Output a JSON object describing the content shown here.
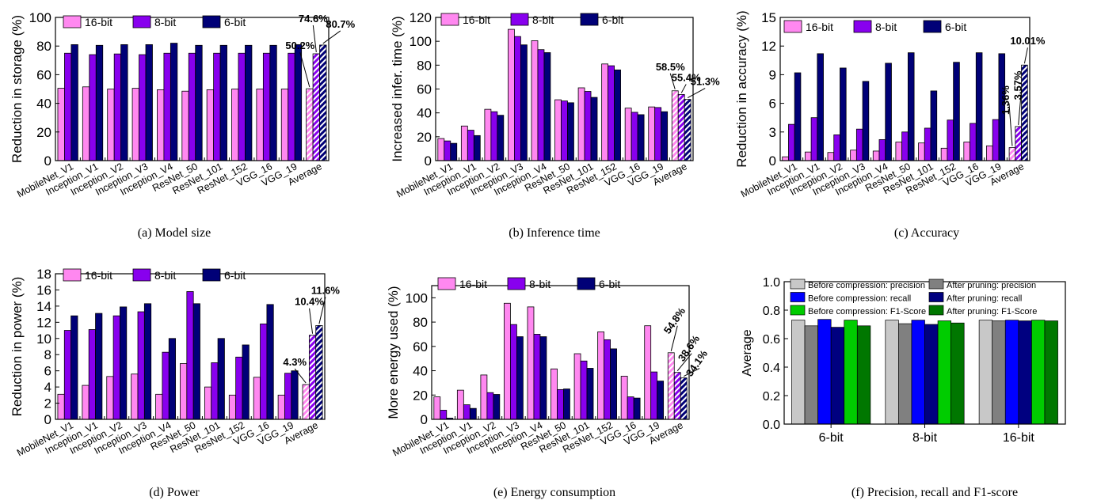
{
  "colors": {
    "b16": "#ff88f0",
    "b8": "#8800ee",
    "b6": "#000077",
    "f_before_precision": "#c8c8c8",
    "f_after_precision": "#808080",
    "f_before_recall": "#0000ff",
    "f_after_recall": "#000080",
    "f_before_f1": "#00cc00",
    "f_after_f1": "#007700"
  },
  "chart_data": [
    {
      "id": "a",
      "type": "bar",
      "caption": "(a) Model size",
      "ylabel": "Reduction in storage (%)",
      "ylim": [
        0,
        100
      ],
      "yticks": [
        0,
        20,
        40,
        60,
        80,
        100
      ],
      "categories": [
        "MobileNet_V1",
        "Inception_V1",
        "Inception_V2",
        "Inception_V3",
        "Inception_V4",
        "ResNet_50",
        "ResNet_101",
        "ResNet_152",
        "VGG_16",
        "VGG_19",
        "Average"
      ],
      "series": [
        {
          "name": "16-bit",
          "values": [
            50.5,
            51.5,
            50,
            50.5,
            49.5,
            48.5,
            49.5,
            50,
            50,
            50,
            50.2
          ]
        },
        {
          "name": "8-bit",
          "values": [
            75,
            74,
            74.5,
            74,
            75,
            75,
            75,
            75,
            75,
            75,
            74.6
          ]
        },
        {
          "name": "6-bit",
          "values": [
            81,
            80.5,
            81,
            81,
            82,
            80.5,
            80.5,
            80.5,
            80.5,
            81,
            80.7
          ]
        }
      ],
      "annotations": [
        "50.2%",
        "74.6%",
        "80.7%"
      ],
      "legend": "top-left"
    },
    {
      "id": "b",
      "type": "bar",
      "caption": "(b) Inference time",
      "ylabel": "Increased infer. time (%)",
      "ylim": [
        0,
        120
      ],
      "yticks": [
        0,
        20,
        40,
        60,
        80,
        100,
        120
      ],
      "categories": [
        "MobileNet_V1",
        "Inception_V1",
        "Inception_V2",
        "Inception_V3",
        "Inception_V4",
        "ResNet_50",
        "ResNet_101",
        "ResNet_152",
        "VGG_16",
        "VGG_19",
        "Average"
      ],
      "series": [
        {
          "name": "16-bit",
          "values": [
            18.5,
            29,
            43,
            110,
            100.5,
            51,
            61,
            81,
            44,
            45,
            58.5
          ]
        },
        {
          "name": "8-bit",
          "values": [
            16.5,
            25.5,
            41,
            104,
            93,
            50,
            58,
            79.5,
            40.5,
            44.5,
            55.4
          ]
        },
        {
          "name": "6-bit",
          "values": [
            14.5,
            21,
            38,
            97,
            90.5,
            48.5,
            53,
            76,
            38.5,
            41,
            51.3
          ]
        }
      ],
      "annotations": [
        "58.5%",
        "55.4%",
        "51.3%"
      ],
      "legend": "top-left"
    },
    {
      "id": "c",
      "type": "bar",
      "caption": "(c) Accuracy",
      "ylabel": "Reduction in accuracy (%)",
      "ylim": [
        0,
        15
      ],
      "yticks": [
        0,
        3,
        6,
        9,
        12,
        15
      ],
      "categories": [
        "MobileNet_V1",
        "Inception_V1",
        "Inception_V2",
        "Inception_V3",
        "Inception_V4",
        "ResNet_50",
        "ResNet_101",
        "ResNet_152",
        "VGG_16",
        "VGG_19",
        "Average"
      ],
      "series": [
        {
          "name": "16-bit",
          "values": [
            0.4,
            0.9,
            0.85,
            1.1,
            1.0,
            1.95,
            1.85,
            1.3,
            1.95,
            1.55,
            1.36
          ]
        },
        {
          "name": "8-bit",
          "values": [
            3.8,
            4.5,
            2.7,
            3.3,
            2.2,
            3.0,
            3.4,
            4.25,
            3.9,
            4.3,
            3.57
          ]
        },
        {
          "name": "6-bit",
          "values": [
            9.2,
            11.2,
            9.7,
            8.3,
            10.2,
            11.3,
            7.3,
            10.3,
            11.3,
            11.2,
            10.01
          ]
        }
      ],
      "annotations": [
        "1.36%",
        "3.57%",
        "10.01%"
      ],
      "legend": "top-left"
    },
    {
      "id": "d",
      "type": "bar",
      "caption": "(d) Power",
      "ylabel": "Reduction in power (%)",
      "ylim": [
        0,
        18
      ],
      "yticks": [
        0,
        2,
        4,
        6,
        8,
        10,
        12,
        14,
        16,
        18
      ],
      "categories": [
        "MobileNet_V1",
        "Inception_V1",
        "Inception_V2",
        "Inception_V3",
        "Inception_V4",
        "ResNet_50",
        "ResNet_101",
        "ResNet_152",
        "VGG_16",
        "VGG_19",
        "Average"
      ],
      "series": [
        {
          "name": "16-bit",
          "values": [
            3.1,
            4.2,
            5.3,
            5.6,
            3.1,
            6.9,
            4.0,
            3.0,
            5.2,
            3.0,
            4.3
          ]
        },
        {
          "name": "8-bit",
          "values": [
            11.0,
            11.1,
            12.8,
            13.3,
            8.3,
            15.8,
            7.0,
            7.7,
            11.8,
            5.7,
            10.4
          ]
        },
        {
          "name": "6-bit",
          "values": [
            12.8,
            13.1,
            13.9,
            14.3,
            10.0,
            14.3,
            10.0,
            9.2,
            14.2,
            6.0,
            11.6
          ]
        }
      ],
      "annotations": [
        "4.3%",
        "10.4%",
        "11.6%"
      ],
      "legend": "top-left"
    },
    {
      "id": "e",
      "type": "bar",
      "caption": "(e) Energy consumption",
      "ylabel": "More energy used (%)",
      "ylim": [
        0,
        110
      ],
      "yticks": [
        0,
        20,
        40,
        60,
        80,
        100
      ],
      "categories": [
        "MobileNet_V1",
        "Inception_V1",
        "Inception_V2",
        "Inception_V3",
        "Inception_V4",
        "ResNet_50",
        "ResNet_101",
        "ResNet_152",
        "VGG_16",
        "VGG_19",
        "Average"
      ],
      "series": [
        {
          "name": "16-bit",
          "values": [
            18.5,
            24,
            36.5,
            95.5,
            92.5,
            41.5,
            54,
            72,
            35.5,
            77,
            54.8
          ]
        },
        {
          "name": "8-bit",
          "values": [
            7.5,
            12,
            22,
            78,
            70,
            24.5,
            48,
            65.5,
            18.5,
            39,
            38.6
          ]
        },
        {
          "name": "6-bit",
          "values": [
            1,
            9,
            20.5,
            68,
            68,
            25,
            42,
            58,
            17.5,
            31.5,
            34.1
          ]
        }
      ],
      "annotations": [
        "54.8%",
        "38.6%",
        "34.1%"
      ],
      "legend": "top-left"
    },
    {
      "id": "f",
      "type": "bar",
      "caption": "(f) Precision, recall and F1-score",
      "ylabel": "Average",
      "ylim": [
        0,
        1.0
      ],
      "yticks": [
        "0.0",
        "0.2",
        "0.4",
        "0.6",
        "0.8",
        "1.0"
      ],
      "categories": [
        "6-bit",
        "8-bit",
        "16-bit"
      ],
      "series": [
        {
          "name": "Before compression: precision",
          "values": [
            0.73,
            0.73,
            0.73
          ]
        },
        {
          "name": "After pruning: precision",
          "values": [
            0.69,
            0.705,
            0.725
          ]
        },
        {
          "name": "Before compression: recall",
          "values": [
            0.735,
            0.73,
            0.73
          ]
        },
        {
          "name": "After pruning: recall",
          "values": [
            0.68,
            0.7,
            0.725
          ]
        },
        {
          "name": "Before compression: F1-Score",
          "values": [
            0.73,
            0.725,
            0.73
          ]
        },
        {
          "name": "After pruning: F1-Score",
          "values": [
            0.69,
            0.71,
            0.725
          ]
        }
      ],
      "legend": "top"
    }
  ]
}
